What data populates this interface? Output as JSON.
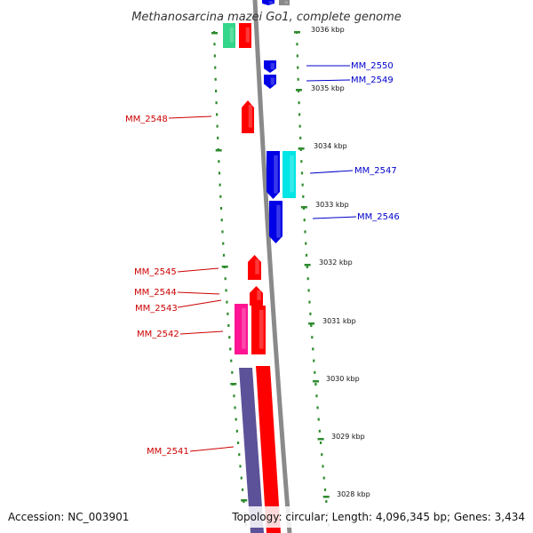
{
  "title": "Methanosarcina mazei Go1, complete genome",
  "footer": {
    "accession": "Accession: NC_003901",
    "summary": "Topology: circular; Length: 4,096,345 bp; Genes: 3,434"
  },
  "colors": {
    "forward": "#ff0000",
    "reverse": "#0000e6",
    "cyan": "#00e5e5",
    "green": "#33d68a",
    "magenta": "#ff1493",
    "purple": "#5c5299",
    "backbone": "#8a8a8a",
    "ruler": "#2e8b2e",
    "label_reverse": "#0000cc",
    "label_forward": "#cc0000"
  },
  "ruler": {
    "unit": "kbp",
    "ticks": [
      "3036 kbp",
      "3035 kbp",
      "3034 kbp",
      "3033 kbp",
      "3032 kbp",
      "3031 kbp",
      "3030 kbp",
      "3029 kbp",
      "3028 kbp"
    ]
  },
  "genes": [
    {
      "label": "MM_2550",
      "strand": "reverse",
      "color": "reverse"
    },
    {
      "label": "MM_2549",
      "strand": "reverse",
      "color": "reverse"
    },
    {
      "label": "MM_2548",
      "strand": "forward",
      "color": "forward"
    },
    {
      "label": "MM_2547",
      "strand": "reverse",
      "color": "reverse"
    },
    {
      "label": "MM_2546",
      "strand": "reverse",
      "color": "reverse"
    },
    {
      "label": "MM_2545",
      "strand": "forward",
      "color": "forward"
    },
    {
      "label": "MM_2544",
      "strand": "forward",
      "color": "forward"
    },
    {
      "label": "MM_2543",
      "strand": "forward",
      "color": "forward"
    },
    {
      "label": "MM_2542",
      "strand": "forward",
      "color": "forward"
    },
    {
      "label": "MM_2541",
      "strand": "forward",
      "color": "forward"
    }
  ]
}
